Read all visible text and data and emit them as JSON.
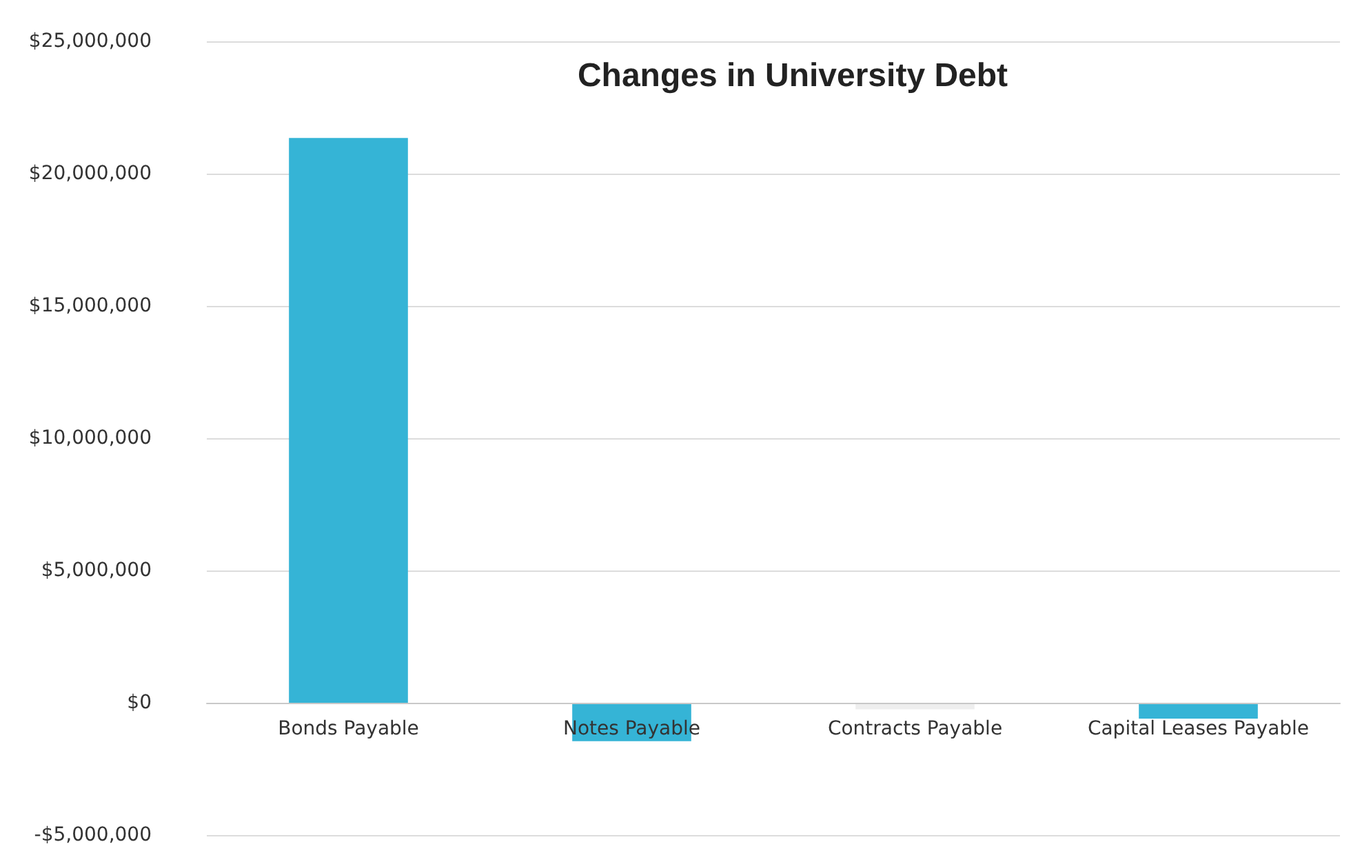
{
  "chart_data": {
    "type": "bar",
    "title": "Changes in University Debt",
    "categories": [
      "Bonds Payable",
      "Notes Payable",
      "Contracts Payable",
      "Capital Leases Payable"
    ],
    "values": [
      21350000,
      -1450000,
      -250000,
      -600000
    ],
    "colors": [
      "#35b4d6",
      "#35b4d6",
      "#eeeeee",
      "#35b4d6"
    ],
    "ylim": [
      -5000000,
      25000000
    ],
    "yticks": [
      {
        "value": -5000000,
        "label": "-$5,000,000"
      },
      {
        "value": 0,
        "label": "$0"
      },
      {
        "value": 5000000,
        "label": "$5,000,000"
      },
      {
        "value": 10000000,
        "label": "$10,000,000"
      },
      {
        "value": 15000000,
        "label": "$15,000,000"
      },
      {
        "value": 20000000,
        "label": "$20,000,000"
      },
      {
        "value": 25000000,
        "label": "$25,000,000"
      }
    ],
    "grid": "y"
  }
}
